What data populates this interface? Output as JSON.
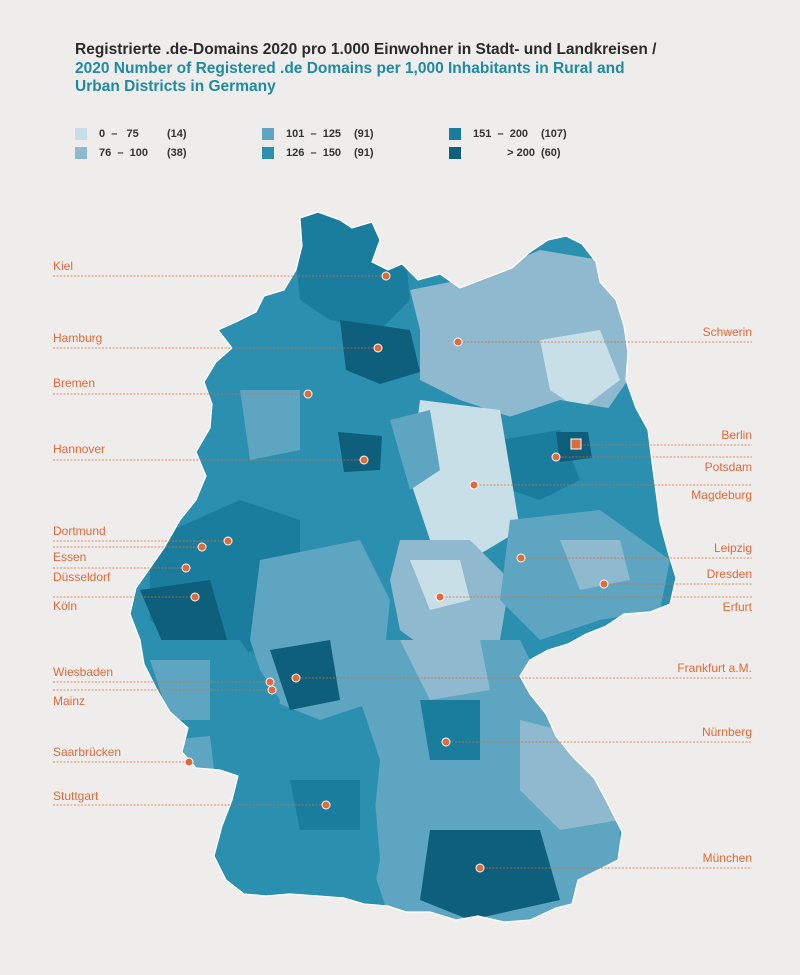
{
  "title": {
    "de": "Registrierte .de-Domains 2020 pro 1.000 Einwohner in Stadt- und Landkreisen /",
    "en_line1": "2020 Number of Registered .de Domains per 1,000 Inhabitants in Rural and",
    "en_line2": "Urban Districts in Germany"
  },
  "legend": [
    {
      "range": "0  –   75",
      "count": "(14)",
      "color": "#c9dfe7"
    },
    {
      "range": "76  –  100",
      "count": "(38)",
      "color": "#8fb9cf"
    },
    {
      "range": "101  –  125",
      "count": "(91)",
      "color": "#5ea5c2"
    },
    {
      "range": "126  –  150",
      "count": "(91)",
      "color": "#2b8fb0"
    },
    {
      "range": "151  –  200",
      "count": "(107)",
      "color": "#1a7d9d"
    },
    {
      "range": "> 200",
      "count": "(60)",
      "color": "#0d5f7c"
    }
  ],
  "colors": {
    "accent_orange": "#e06a3a",
    "background": "#efedec"
  },
  "cities_left": [
    "Kiel",
    "Hamburg",
    "Bremen",
    "Hannover",
    "Dortmund",
    "Essen",
    "Düsseldorf",
    "Köln",
    "Wiesbaden",
    "Mainz",
    "Saarbrücken",
    "Stuttgart"
  ],
  "cities_right": [
    "Schwerin",
    "Berlin",
    "Potsdam",
    "Magdeburg",
    "Leipzig",
    "Dresden",
    "Erfurt",
    "Frankfurt a.M.",
    "Nürnberg",
    "München"
  ]
}
